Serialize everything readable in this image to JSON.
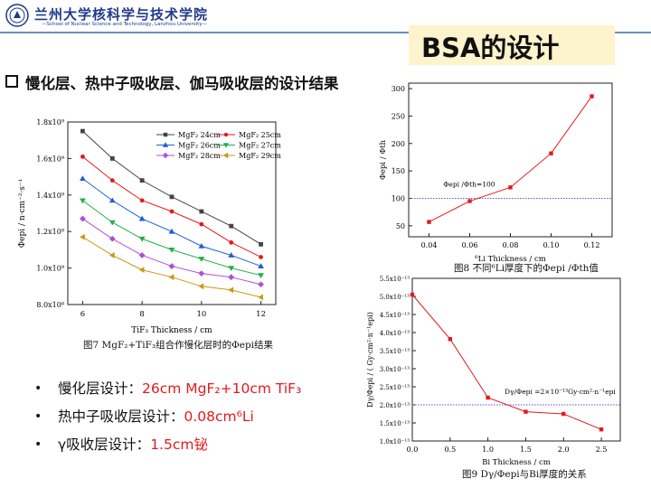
{
  "header": {
    "university_cn": "兰州大学核科学与技术学院",
    "university_en": "—School of Nuclear Science and Technology, Lanzhou University—"
  },
  "slide": {
    "title": "BSA的设计",
    "heading": "慢化层、热中子吸收层、伽马吸收层的设计结果",
    "bullets": [
      {
        "label": "慢化层设计：",
        "value": "26cm MgF₂+10cm TiF₃"
      },
      {
        "label": "热中子吸收层设计：",
        "value": "0.08cm⁶Li"
      },
      {
        "label": "γ吸收层设计：",
        "value": "1.5cm铋"
      }
    ]
  },
  "figures": {
    "fig7_caption": "图7  MgF₂+TiF₃组合作慢化层时的Φepi结果",
    "fig8_caption": "图8  不同⁶Li厚度下的Φepi /Φth值",
    "fig9_caption": "图9  Dγ/Φepi与Bi厚度的关系"
  },
  "chart_data": [
    {
      "type": "line",
      "xlabel": "TiF₃ Thickness / cm",
      "ylabel": "Φepi / n·cm⁻²·s⁻¹",
      "xlim": [
        5.5,
        12.5
      ],
      "ylim": [
        800000000.0,
        1800000000.0
      ],
      "x": [
        6,
        7,
        8,
        9,
        10,
        11,
        12
      ],
      "xticks": [
        "6",
        "8",
        "10",
        "12"
      ],
      "yticks": [
        "8.0x10⁸",
        "1.0x10⁹",
        "1.2x10⁹",
        "1.4x10⁹",
        "1.6x10⁹",
        "1.8x10⁹"
      ],
      "legend_position": "top-right",
      "grid": false,
      "series": [
        {
          "name": "MgF₂ 24cm",
          "color": "#444444",
          "marker": "square",
          "values": [
            1750000000.0,
            1600000000.0,
            1480000000.0,
            1390000000.0,
            1310000000.0,
            1230000000.0,
            1130000000.0
          ]
        },
        {
          "name": "MgF₂ 25cm",
          "color": "#e41a1c",
          "marker": "circle",
          "values": [
            1610000000.0,
            1480000000.0,
            1370000000.0,
            1310000000.0,
            1240000000.0,
            1140000000.0,
            1060000000.0
          ]
        },
        {
          "name": "MgF₂ 26cm",
          "color": "#1f5fd6",
          "marker": "triangle",
          "values": [
            1490000000.0,
            1370000000.0,
            1270000000.0,
            1200000000.0,
            1120000000.0,
            1070000000.0,
            1010000000.0
          ]
        },
        {
          "name": "MgF₂ 27cm",
          "color": "#20b04a",
          "marker": "tri-down",
          "values": [
            1370000000.0,
            1250000000.0,
            1160000000.0,
            1100000000.0,
            1050000000.0,
            1000000000.0,
            960000000.0
          ]
        },
        {
          "name": "MgF₂ 28cm",
          "color": "#b04fd6",
          "marker": "diamond",
          "values": [
            1270000000.0,
            1160000000.0,
            1070000000.0,
            1010000000.0,
            970000000.0,
            950000000.0,
            910000000.0
          ]
        },
        {
          "name": "MgF₂ 29cm",
          "color": "#c79a16",
          "marker": "tri-left",
          "values": [
            1170000000.0,
            1070000000.0,
            990000000.0,
            950000000.0,
            900000000.0,
            880000000.0,
            840000000.0
          ]
        }
      ]
    },
    {
      "type": "line",
      "xlabel": "⁶Li  Thickness / cm",
      "ylabel": "Φepi / Φth",
      "xlim": [
        0.03,
        0.13
      ],
      "ylim": [
        30,
        310
      ],
      "xticks": [
        "0.04",
        "0.06",
        "0.08",
        "0.10",
        "0.12"
      ],
      "yticks": [
        "50",
        "100",
        "150",
        "200",
        "250",
        "300"
      ],
      "series": [
        {
          "name": "",
          "color": "#e41a1c",
          "x": [
            0.04,
            0.06,
            0.08,
            0.1,
            0.12
          ],
          "values": [
            57,
            95,
            120,
            182,
            286
          ]
        }
      ],
      "reference_line": {
        "y": 100,
        "label": "Φepi /Φth=100",
        "color": "#5555cc"
      }
    },
    {
      "type": "line",
      "xlabel": "Bi Thickness / cm",
      "ylabel": "Dγ/Φepi / ( Gy·cm²·n⁻¹epi)",
      "xlim": [
        0,
        2.75
      ],
      "ylim": [
        1e-13,
        5.5e-13
      ],
      "xticks": [
        "0.0",
        "0.5",
        "1.0",
        "1.5",
        "2.0",
        "2.5"
      ],
      "yticks": [
        "1.0x10⁻¹³",
        "1.5x10⁻¹³",
        "2.0x10⁻¹³",
        "2.5x10⁻¹³",
        "3.0x10⁻¹³",
        "3.5x10⁻¹³",
        "4.0x10⁻¹³",
        "4.5x10⁻¹³",
        "5.0x10⁻¹³",
        "5.5x10⁻¹³"
      ],
      "series": [
        {
          "name": "",
          "color": "#e41a1c",
          "x": [
            0,
            0.5,
            1.0,
            1.5,
            2.0,
            2.5
          ],
          "values": [
            5.05e-13,
            3.82e-13,
            2.2e-13,
            1.81e-13,
            1.75e-13,
            1.32e-13
          ]
        }
      ],
      "reference_line": {
        "y": 2e-13,
        "label": "Dγ/Φepi =2×10⁻¹³Gy·cm²·n⁻¹epi",
        "color": "#5555cc"
      }
    }
  ]
}
